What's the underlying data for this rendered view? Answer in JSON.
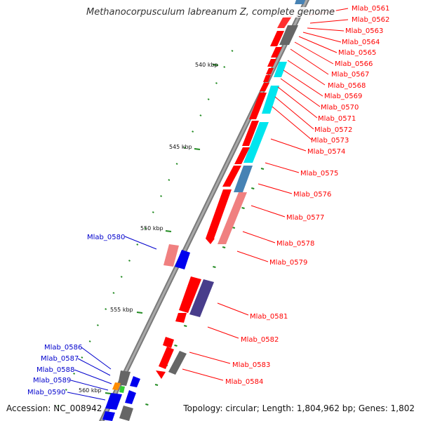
{
  "title": "Methanocorpusculum labreanum Z, complete genome",
  "footer": {
    "accession_label": "Accession:",
    "accession": "NC_008942",
    "topology_text": "Topology: circular; Length: 1,804,962 bp; Genes: 1,802"
  },
  "colors": {
    "forward_label": "#ff0000",
    "reverse_label": "#0000cc",
    "backbone": "#8c8c8c",
    "tick_mark": "#228b22"
  },
  "ticks": [
    {
      "label": "540 kbp"
    },
    {
      "label": "545 kbp"
    },
    {
      "label": "550 kbp"
    },
    {
      "label": "555 kbp"
    },
    {
      "label": "560 kbp"
    }
  ],
  "forward_genes": [
    {
      "label": "Mlab_0561"
    },
    {
      "label": "Mlab_0562"
    },
    {
      "label": "Mlab_0563"
    },
    {
      "label": "Mlab_0564"
    },
    {
      "label": "Mlab_0565"
    },
    {
      "label": "Mlab_0566"
    },
    {
      "label": "Mlab_0567"
    },
    {
      "label": "Mlab_0568"
    },
    {
      "label": "Mlab_0569"
    },
    {
      "label": "Mlab_0570"
    },
    {
      "label": "Mlab_0571"
    },
    {
      "label": "Mlab_0572"
    },
    {
      "label": "Mlab_0573"
    },
    {
      "label": "Mlab_0574"
    },
    {
      "label": "Mlab_0575"
    },
    {
      "label": "Mlab_0576"
    },
    {
      "label": "Mlab_0577"
    },
    {
      "label": "Mlab_0578"
    },
    {
      "label": "Mlab_0579"
    },
    {
      "label": "Mlab_0581"
    },
    {
      "label": "Mlab_0582"
    },
    {
      "label": "Mlab_0583"
    },
    {
      "label": "Mlab_0584"
    }
  ],
  "reverse_genes": [
    {
      "label": "Mlab_0580"
    },
    {
      "label": "Mlab_0586"
    },
    {
      "label": "Mlab_0587"
    },
    {
      "label": "Mlab_0588"
    },
    {
      "label": "Mlab_0589"
    },
    {
      "label": "Mlab_0590"
    }
  ]
}
